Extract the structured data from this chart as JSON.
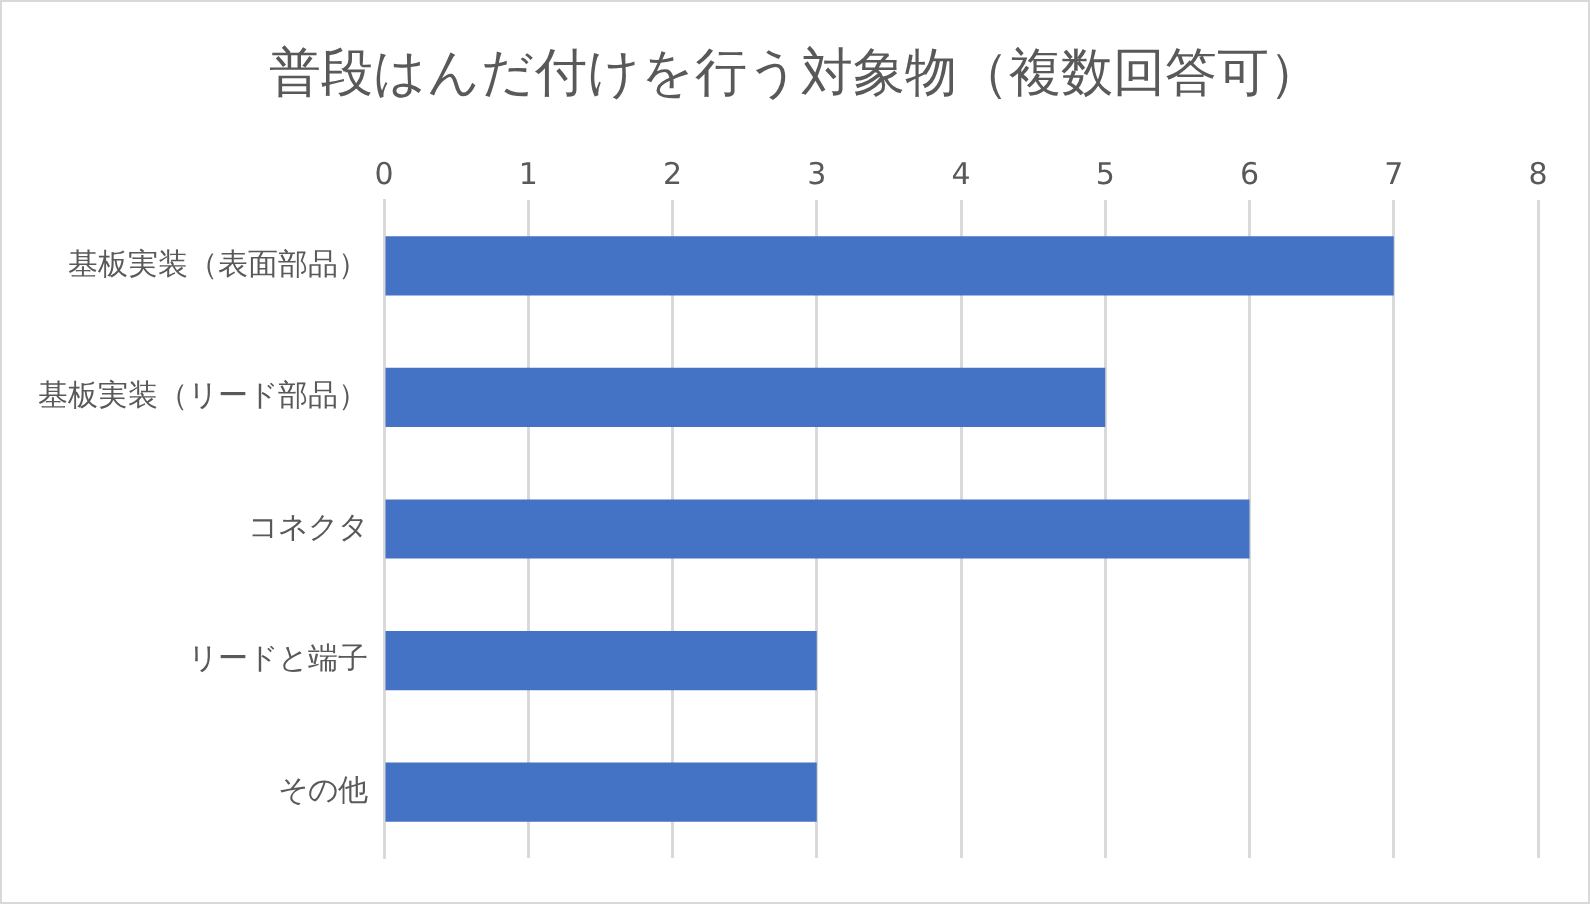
{
  "chart_data": {
    "type": "bar",
    "orientation": "horizontal",
    "title": "普段はんだ付けを行う対象物（複数回答可）",
    "categories": [
      "基板実装（表面部品）",
      "基板実装（リード部品）",
      "コネクタ",
      "リードと端子",
      "その他"
    ],
    "values": [
      7,
      5,
      6,
      3,
      3
    ],
    "color": "#4472c4",
    "xlim": [
      0,
      8
    ],
    "xticks": [
      0,
      1,
      2,
      3,
      4,
      5,
      6,
      7,
      8
    ],
    "grid": "x",
    "legend": false
  }
}
